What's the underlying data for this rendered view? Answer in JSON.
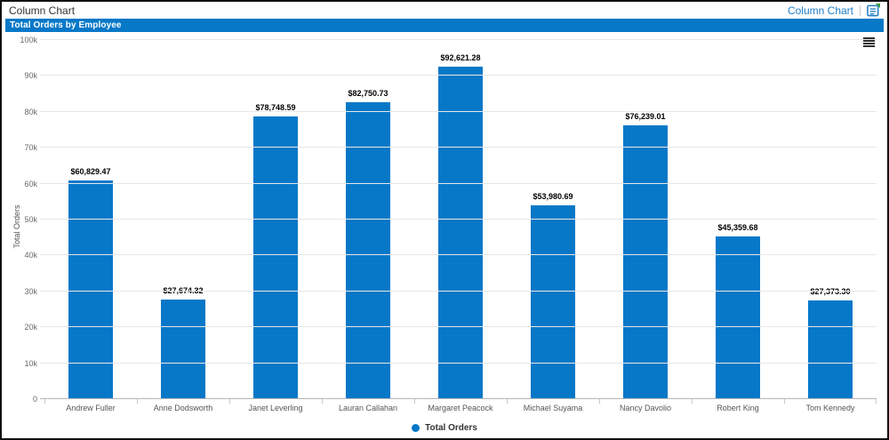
{
  "topbar": {
    "title": "Column Chart",
    "link_label": "Column Chart"
  },
  "panel_header": "Total Orders by Employee",
  "icons": {
    "topbar_right": "sample-source-icon",
    "chart_menu": "hamburger-menu-icon"
  },
  "colors": {
    "accent": "#0778c8",
    "link": "#1d7dc4",
    "icon_green": "#3da03d",
    "gridline": "#e7e7e7",
    "axis_line": "#b6b6b6"
  },
  "chart_data": {
    "type": "bar",
    "title": "Total Orders by Employee",
    "series_name": "Total Orders",
    "categories": [
      "Andrew Fuller",
      "Anne Dodsworth",
      "Janet Leverling",
      "Lauran Callahan",
      "Margaret Peacock",
      "Michael Suyama",
      "Nancy Davolio",
      "Robert King",
      "Tom Kennedy"
    ],
    "values": [
      60829.47,
      27674.32,
      78748.59,
      82750.73,
      92621.28,
      53980.69,
      76239.01,
      45359.68,
      27373.3
    ],
    "value_labels": [
      "$60,829.47",
      "$27,674.32",
      "$78,748.59",
      "$82,750.73",
      "$92,621.28",
      "$53,980.69",
      "$76,239.01",
      "$45,359.68",
      "$27,373.30"
    ],
    "xlabel": "",
    "ylabel": "Total Orders",
    "ylim": [
      0,
      100000
    ],
    "ytick_step": 10000,
    "ytick_labels": [
      "0",
      "10k",
      "20k",
      "30k",
      "40k",
      "50k",
      "60k",
      "70k",
      "80k",
      "90k",
      "100k"
    ],
    "grid": true,
    "bar_color": "#0778c8",
    "legend": {
      "position": "bottom",
      "items": [
        {
          "label": "Total Orders",
          "color": "#0778c8"
        }
      ]
    }
  }
}
